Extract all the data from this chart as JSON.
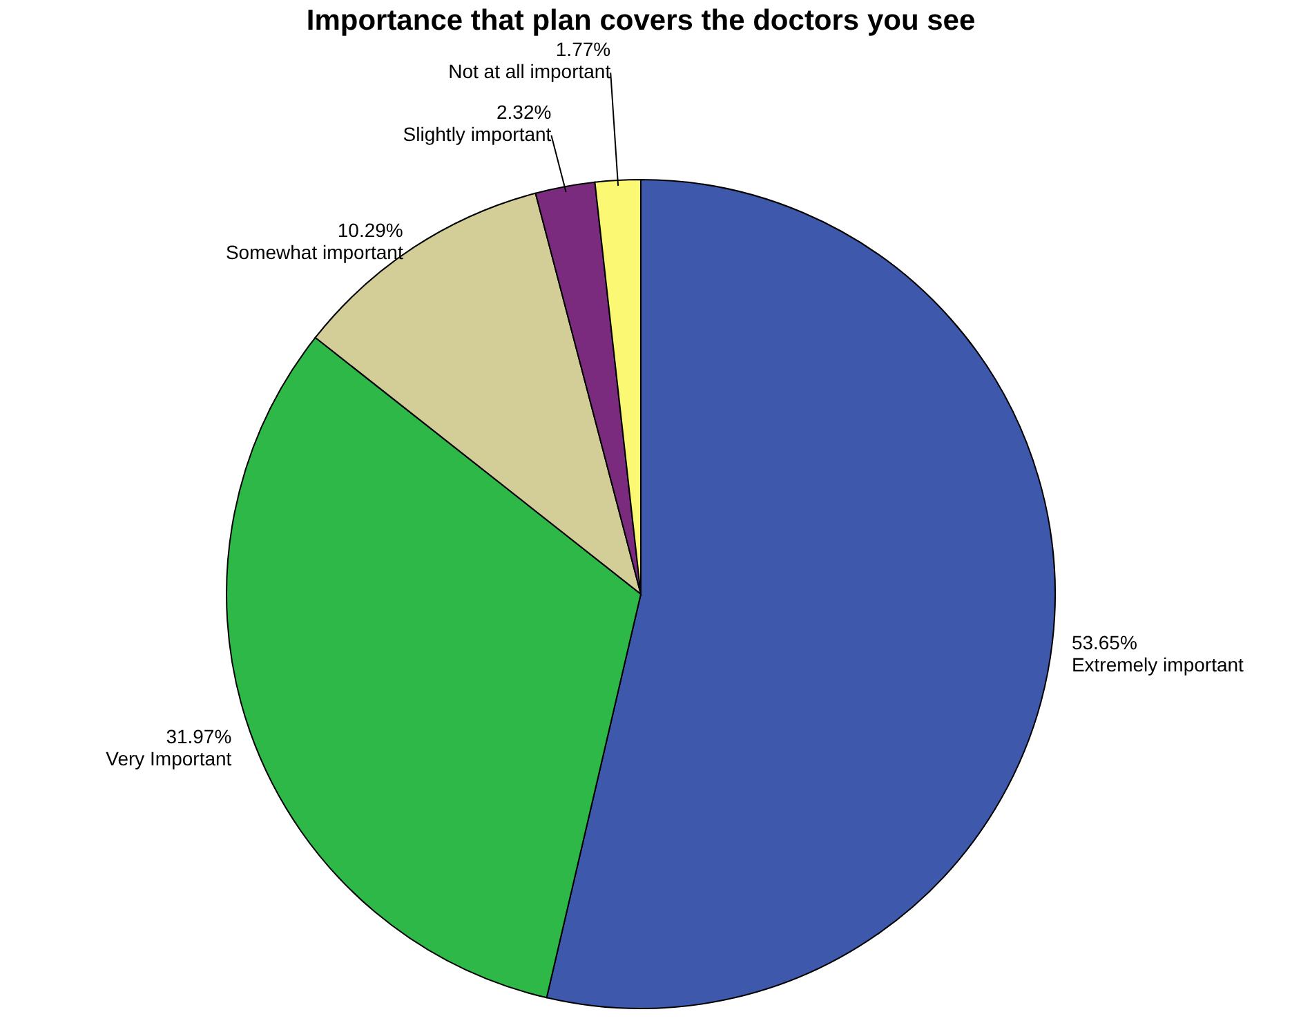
{
  "chart_data": {
    "type": "pie",
    "title": "Importance that plan covers the doctors you see",
    "categories": [
      "Extremely important",
      "Very Important",
      "Somewhat important",
      "Slightly important",
      "Not at all important"
    ],
    "values": [
      53.65,
      31.97,
      10.29,
      2.32,
      1.77
    ],
    "value_labels": [
      "53.65%",
      "31.97%",
      "10.29%",
      "2.32%",
      "1.77%"
    ],
    "colors": [
      "#3e58ac",
      "#2eb848",
      "#d3ce97",
      "#7b2b7e",
      "#fbf873"
    ],
    "legend": false
  }
}
